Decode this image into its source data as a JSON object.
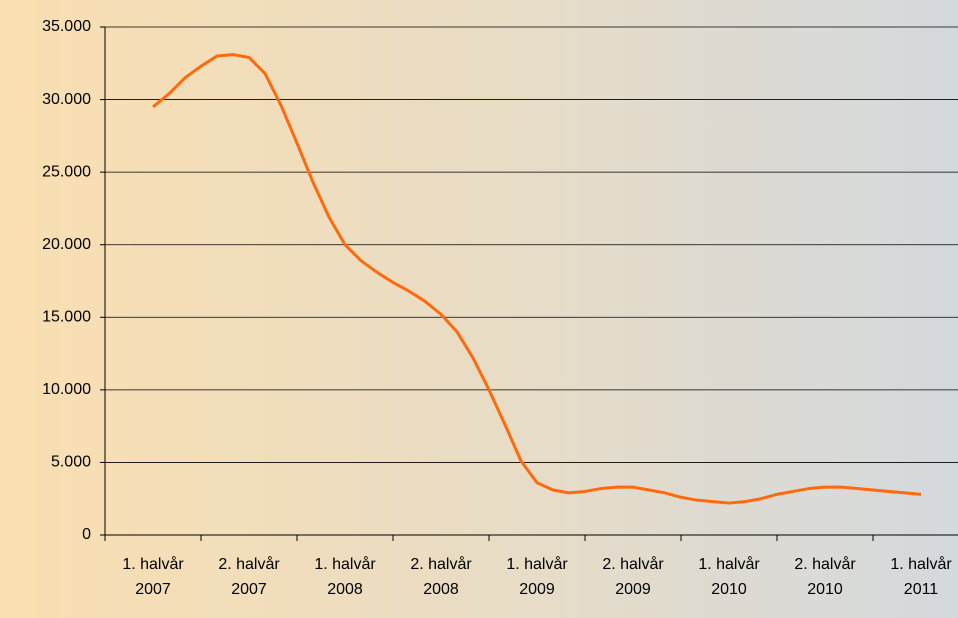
{
  "chart_data": {
    "type": "line",
    "categories": [
      "1. halvår 2007",
      null,
      null,
      null,
      null,
      null,
      "2. halvår 2007",
      null,
      null,
      null,
      null,
      null,
      "1. halvår 2008",
      null,
      null,
      null,
      null,
      null,
      "2. halvår 2008",
      null,
      null,
      null,
      null,
      null,
      "1. halvår 2009",
      null,
      null,
      null,
      null,
      null,
      "2. halvår 2009",
      null,
      null,
      null,
      null,
      null,
      "1. halvår 2010",
      null,
      null,
      null,
      null,
      null,
      "2. halvår 2010",
      null,
      null,
      null,
      null,
      null,
      "1. halvår 2011"
    ],
    "series": [
      {
        "color": "#ff6a0d",
        "values": [
          29500,
          30400,
          31500,
          32300,
          33000,
          33100,
          32900,
          31800,
          29600,
          27000,
          24300,
          21900,
          20000,
          18900,
          18100,
          17400,
          16800,
          16100,
          15200,
          14000,
          12200,
          10000,
          7600,
          5100,
          3600,
          3100,
          2900,
          3000,
          3200,
          3300,
          3300,
          3100,
          2900,
          2600,
          2400,
          2300,
          2200,
          2300,
          2500,
          2800,
          3000,
          3200,
          3300,
          3300,
          3200,
          3100,
          3000,
          2900,
          2800
        ]
      }
    ],
    "ylim": [
      0,
      35000
    ],
    "yticks": [
      0,
      {
        "value": 5000,
        "label": "5.000"
      },
      {
        "value": 10000,
        "label": "10.000"
      },
      {
        "value": 15000,
        "label": "15.000"
      },
      {
        "value": 20000,
        "label": "20.000"
      },
      {
        "value": 25000,
        "label": "25.000"
      },
      {
        "value": 30000,
        "label": "30.000"
      },
      {
        "value": 35000,
        "label": "35.000"
      }
    ],
    "grid": true
  }
}
